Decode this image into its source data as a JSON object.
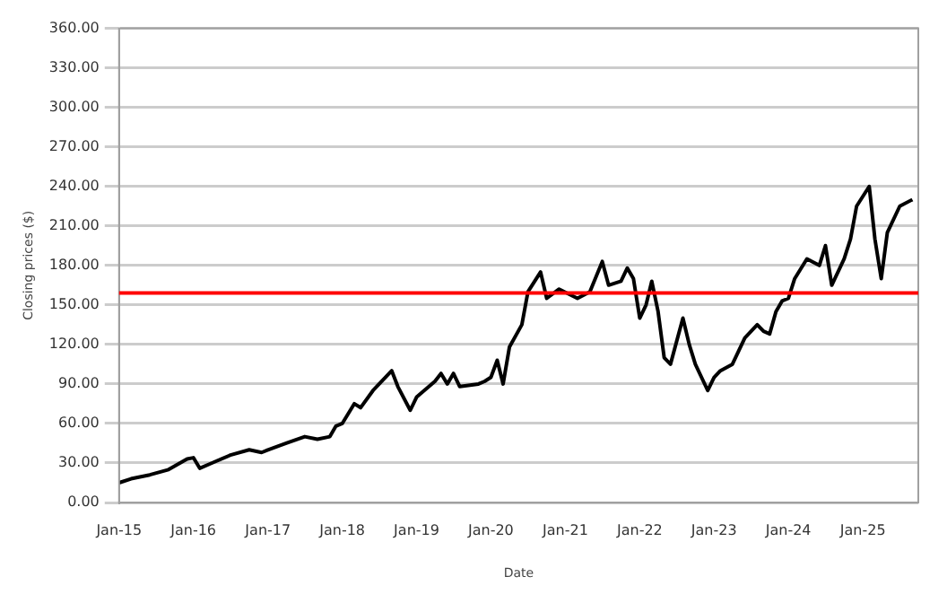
{
  "chart_data": {
    "type": "line",
    "xlabel": "Date",
    "ylabel": "Closing prices ($)",
    "x": [
      "2015-01",
      "2015-03",
      "2015-06",
      "2015-09",
      "2015-12",
      "2016-01",
      "2016-02",
      "2016-04",
      "2016-07",
      "2016-10",
      "2016-12",
      "2017-01",
      "2017-04",
      "2017-07",
      "2017-09",
      "2017-11",
      "2017-12",
      "2018-01",
      "2018-03",
      "2018-04",
      "2018-06",
      "2018-09",
      "2018-10",
      "2018-12",
      "2019-01",
      "2019-04",
      "2019-05",
      "2019-06",
      "2019-07",
      "2019-08",
      "2019-11",
      "2019-12",
      "2020-01",
      "2020-02",
      "2020-03",
      "2020-04",
      "2020-06",
      "2020-07",
      "2020-09",
      "2020-10",
      "2020-12",
      "2021-03",
      "2021-05",
      "2021-07",
      "2021-08",
      "2021-10",
      "2021-11",
      "2021-12",
      "2022-01",
      "2022-02",
      "2022-03",
      "2022-04",
      "2022-05",
      "2022-06",
      "2022-08",
      "2022-09",
      "2022-10",
      "2022-12",
      "2023-01",
      "2023-02",
      "2023-04",
      "2023-06",
      "2023-08",
      "2023-09",
      "2023-10",
      "2023-11",
      "2023-12",
      "2024-01",
      "2024-02",
      "2024-04",
      "2024-06",
      "2024-07",
      "2024-08",
      "2024-10",
      "2024-11",
      "2024-12",
      "2025-02",
      "2025-03",
      "2025-04",
      "2025-05",
      "2025-07",
      "2025-09"
    ],
    "series": [
      {
        "color": "#000000",
        "values": [
          15,
          18,
          21,
          25,
          33,
          34,
          26,
          30,
          36,
          40,
          38,
          40,
          45,
          50,
          48,
          50,
          58,
          60,
          75,
          72,
          85,
          100,
          88,
          70,
          80,
          92,
          98,
          90,
          98,
          88,
          90,
          92,
          95,
          108,
          90,
          118,
          135,
          160,
          175,
          155,
          162,
          155,
          160,
          183,
          165,
          168,
          178,
          170,
          140,
          150,
          168,
          145,
          110,
          105,
          140,
          120,
          105,
          85,
          95,
          100,
          105,
          125,
          135,
          130,
          128,
          145,
          153,
          155,
          170,
          185,
          180,
          195,
          165,
          185,
          200,
          225,
          240,
          200,
          170,
          205,
          225,
          230
        ]
      }
    ],
    "xlim": [
      "2015-01",
      "2025-09-30"
    ],
    "xticks": [
      {
        "value": "2015-01",
        "label": "Jan-15"
      },
      {
        "value": "2016-01",
        "label": "Jan-16"
      },
      {
        "value": "2017-01",
        "label": "Jan-17"
      },
      {
        "value": "2018-01",
        "label": "Jan-18"
      },
      {
        "value": "2019-01",
        "label": "Jan-19"
      },
      {
        "value": "2020-01",
        "label": "Jan-20"
      },
      {
        "value": "2021-01",
        "label": "Jan-21"
      },
      {
        "value": "2022-01",
        "label": "Jan-22"
      },
      {
        "value": "2023-01",
        "label": "Jan-23"
      },
      {
        "value": "2024-01",
        "label": "Jan-24"
      },
      {
        "value": "2025-01",
        "label": "Jan-25"
      }
    ],
    "ylim": [
      0,
      360
    ],
    "yticks": [
      {
        "value": 0,
        "label": "0.00"
      },
      {
        "value": 30,
        "label": "30.00"
      },
      {
        "value": 60,
        "label": "60.00"
      },
      {
        "value": 90,
        "label": "90.00"
      },
      {
        "value": 120,
        "label": "120.00"
      },
      {
        "value": 150,
        "label": "150.00"
      },
      {
        "value": 180,
        "label": "180.00"
      },
      {
        "value": 210,
        "label": "210.00"
      },
      {
        "value": 240,
        "label": "240.00"
      },
      {
        "value": 270,
        "label": "270.00"
      },
      {
        "value": 300,
        "label": "300.00"
      },
      {
        "value": 330,
        "label": "330.00"
      },
      {
        "value": 360,
        "label": "360.00"
      }
    ],
    "ref_lines": [
      {
        "axis": "y",
        "value": 159,
        "color": "#ff0000"
      }
    ],
    "grid": "y",
    "legend": false,
    "marker": "none",
    "line_style": "solid"
  }
}
